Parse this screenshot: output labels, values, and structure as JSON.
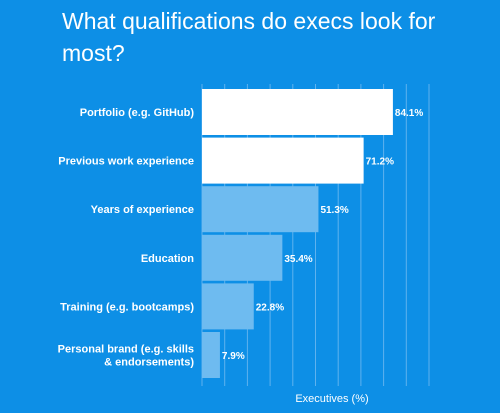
{
  "chart_data": {
    "type": "bar",
    "orientation": "horizontal",
    "title": "What qualifications do execs look for most?",
    "xlabel": "Executives (%)",
    "ylabel": "",
    "xlim": [
      0,
      100
    ],
    "grid": true,
    "categories": [
      [
        "Portfolio (e.g. GitHub)"
      ],
      [
        "Previous work experience"
      ],
      [
        "Years of experience"
      ],
      [
        "Education"
      ],
      [
        "Training (e.g. bootcamps)"
      ],
      [
        "Personal brand (e.g. skills",
        "& endorsements)"
      ]
    ],
    "values": [
      84.1,
      71.2,
      51.3,
      35.4,
      22.8,
      7.9
    ],
    "value_labels": [
      "84.1%",
      "71.2%",
      "51.3%",
      "35.4%",
      "22.8%",
      "7.9%"
    ],
    "colors": {
      "background": "#0d8fe6",
      "bar_highlight": "#ffffff",
      "bar_default": "#6ebbf0",
      "gridline": "#5fb2ee",
      "text": "#ffffff"
    },
    "highlight_count": 2
  }
}
